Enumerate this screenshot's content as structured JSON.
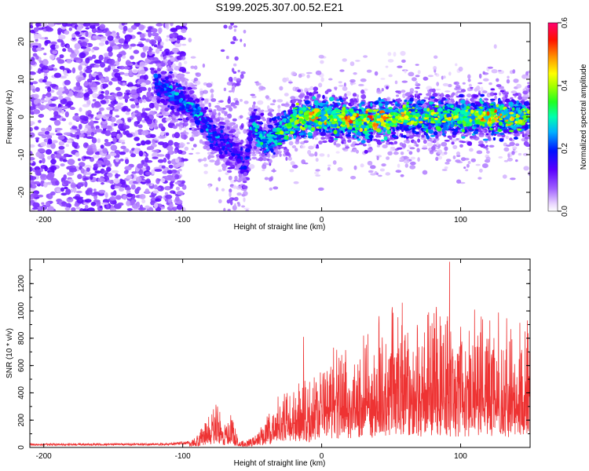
{
  "title": "S199.2025.307.00.52.E21",
  "chart_data": [
    {
      "type": "heatmap",
      "name": "spectrogram",
      "xlabel": "Height of straight line (km)",
      "ylabel": "Frequency (Hz)",
      "xlim": [
        -210,
        150
      ],
      "ylim": [
        -25,
        25
      ],
      "xticks": [
        -200,
        -100,
        0,
        100
      ],
      "yticks": [
        -20,
        -10,
        0,
        10,
        20
      ],
      "colorbar": {
        "label": "Normalized spectral amplitude",
        "range": [
          0.0,
          0.6
        ],
        "ticks": [
          "0.0",
          "0.2",
          "0.4",
          "0.6"
        ],
        "colors": [
          "#ffffff",
          "#c080ff",
          "#6a00ff",
          "#0010ff",
          "#00e0ff",
          "#00ff60",
          "#a0ff00",
          "#ffff00",
          "#ff8000",
          "#ff0000",
          "#ff0080"
        ]
      },
      "signal_track": {
        "height_km": [
          -120,
          -110,
          -100,
          -90,
          -80,
          -70,
          -60,
          -55,
          -50,
          -45,
          -40,
          -30,
          -20,
          -10,
          0,
          20,
          40,
          60,
          80,
          100,
          120,
          150
        ],
        "center_frequency_hz": [
          9,
          7,
          4,
          1,
          -4,
          -7,
          -10,
          -14,
          -2,
          -5,
          -7,
          -4,
          -1,
          0,
          0,
          -1,
          -1,
          0,
          0,
          0,
          0,
          0
        ],
        "peak_amplitude": [
          0.25,
          0.3,
          0.3,
          0.3,
          0.28,
          0.25,
          0.25,
          0.2,
          0.3,
          0.35,
          0.35,
          0.4,
          0.5,
          0.55,
          0.5,
          0.55,
          0.55,
          0.5,
          0.45,
          0.5,
          0.55,
          0.45
        ]
      },
      "noise_region_km": [
        -210,
        -98
      ],
      "noise_amplitude": 0.1
    },
    {
      "type": "line",
      "name": "snr",
      "xlabel": "Height of straight line (km)",
      "ylabel": "SNR (10 * v/v)",
      "xlim": [
        -210,
        150
      ],
      "ylim": [
        0,
        1380
      ],
      "xticks": [
        -200,
        -100,
        0,
        100
      ],
      "yticks": [
        0,
        200,
        400,
        600,
        800,
        1000,
        1200
      ],
      "color": "#ee3333",
      "envelope": {
        "x": [
          -210,
          -110,
          -90,
          -80,
          -75,
          -70,
          -65,
          -60,
          -55,
          -50,
          -40,
          -30,
          -20,
          -10,
          0,
          10,
          20,
          30,
          40,
          50,
          60,
          70,
          80,
          90,
          100,
          110,
          120,
          130,
          140,
          150
        ],
        "y": [
          20,
          22,
          40,
          150,
          160,
          110,
          140,
          40,
          20,
          50,
          120,
          200,
          240,
          250,
          330,
          400,
          430,
          460,
          480,
          520,
          500,
          480,
          500,
          520,
          520,
          500,
          480,
          500,
          470,
          480
        ]
      },
      "spikes": [
        {
          "x": -75,
          "y": 300
        },
        {
          "x": -13,
          "y": 810
        },
        {
          "x": 58,
          "y": 1060
        },
        {
          "x": 77,
          "y": 990
        },
        {
          "x": 92,
          "y": 1360
        },
        {
          "x": 110,
          "y": 1010
        },
        {
          "x": 121,
          "y": 930
        },
        {
          "x": 148,
          "y": 930
        }
      ]
    }
  ]
}
